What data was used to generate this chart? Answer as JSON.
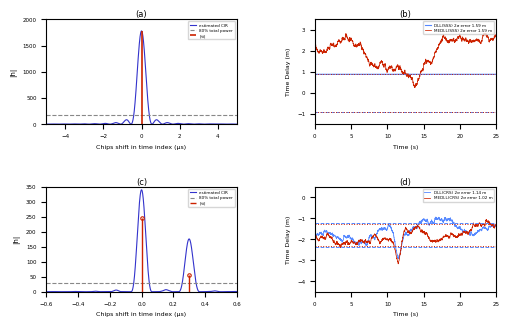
{
  "panel_a": {
    "title": "(a)",
    "xlabel": "Chips shift in time index (μs)",
    "ylabel": "|h|",
    "xlim": [
      -5,
      5
    ],
    "ylim": [
      0,
      2000
    ],
    "yticks": [
      0,
      500,
      1000,
      1500,
      2000
    ],
    "main_peak": 1780,
    "dashed_y": 170,
    "red_stem_x": 0,
    "red_stem_y": 1780,
    "legend": [
      "estimated CIR",
      "|ĥi|",
      "80% total power"
    ],
    "line_color": "#3333cc",
    "stem_color": "#cc2200",
    "dashed_color": "#888888"
  },
  "panel_b": {
    "title": "(b)",
    "xlabel": "Time (s)",
    "ylabel": "Time Delay (m)",
    "xlim": [
      0,
      25
    ],
    "ylim": [
      -1.5,
      3.5
    ],
    "yticks": [
      -1,
      0,
      1,
      2,
      3
    ],
    "dll_color": "#5588ff",
    "medll_color": "#cc2200",
    "legend": [
      "DLL(SSS) 2σ error 1.59 m",
      "MEDLL(SSS) 2σ error 1.59 m"
    ],
    "dll_hline": 0.9,
    "dll_hline_neg": -0.9,
    "medll_hline": 0.9,
    "medll_hline_neg": -0.9
  },
  "panel_c": {
    "title": "(c)",
    "xlabel": "Chips shift in time index (μs)",
    "ylabel": "|h|",
    "xlim": [
      -0.6,
      0.6
    ],
    "ylim": [
      0,
      350
    ],
    "yticks": [
      0,
      50,
      100,
      150,
      200,
      250,
      300,
      350
    ],
    "dashed_y": 28,
    "red_stem1_x": 0.0,
    "red_stem1_y": 245,
    "red_stem2_x": 0.3,
    "red_stem2_y": 55,
    "legend": [
      "estimated CIR",
      "|ĥi|",
      "80% total power"
    ],
    "line_color": "#3333cc",
    "stem_color": "#cc2200",
    "dashed_color": "#888888"
  },
  "panel_d": {
    "title": "(d)",
    "xlabel": "Time (s)",
    "ylabel": "Time Delay (m)",
    "xlim": [
      0,
      25
    ],
    "ylim": [
      -4.5,
      0.5
    ],
    "yticks": [
      -4,
      -3,
      -2,
      -1,
      0
    ],
    "dll_color": "#5588ff",
    "medll_color": "#cc2200",
    "legend": [
      "DLL(CRS) 2σ error 1.14 m",
      "MEDLL(CRS) 2σ error 1.02 m"
    ],
    "dll_mean": -1.8,
    "dll_band": 1.14,
    "medll_mean": -1.8,
    "medll_band": 1.02
  },
  "bg_color": "#ffffff",
  "figure_width": 5.0,
  "figure_height": 3.13
}
